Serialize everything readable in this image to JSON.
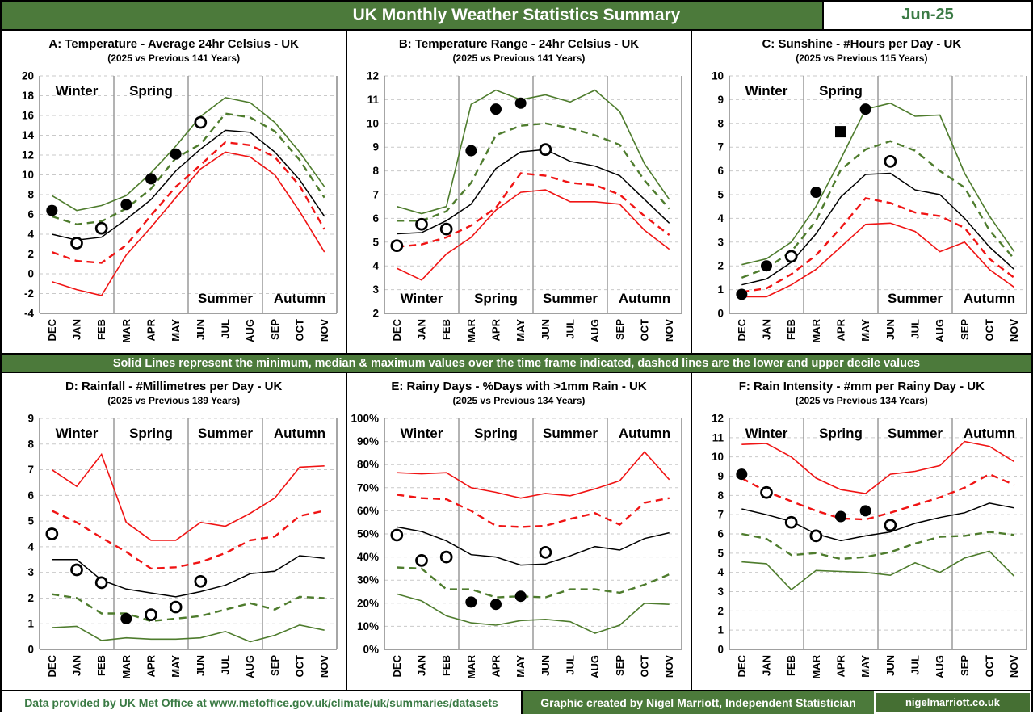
{
  "header": {
    "title": "UK Monthly Weather Statistics Summary",
    "date_label": "Jun-25"
  },
  "note_banner": "Solid Lines represent the minimum, median & maximum values over the time frame indicated, dashed lines are the lower and upper decile values",
  "footer": {
    "source": "Data provided by UK Met Office at www.metoffice.gov.uk/climate/uk/summaries/datasets",
    "credit": "Graphic created by Nigel Marriott, Independent Statistician",
    "website": "nigelmarriott.co.uk"
  },
  "colors": {
    "green": "#4e7c2d",
    "red": "#f01414",
    "black": "#000000",
    "grid": "#c9c9c9",
    "plot_border": "#808080",
    "divider": "#9a9a9a",
    "banner_green": "#4c7a3b"
  },
  "months": [
    "DEC",
    "JAN",
    "FEB",
    "MAR",
    "APR",
    "MAY",
    "JUN",
    "JUL",
    "AUG",
    "SEP",
    "OCT",
    "NOV"
  ],
  "chart_data": [
    {
      "id": "A",
      "type": "line",
      "title": "A: Temperature - Average 24hr Celsius - UK",
      "subtitle": "(2025 vs Previous 141 Years)",
      "ylim": [
        -4,
        20
      ],
      "ytick_step": 2,
      "y_format": "",
      "seasons": [
        {
          "label": "Winter",
          "pos": "top"
        },
        {
          "label": "Spring",
          "pos": "top"
        },
        {
          "label": "Summer",
          "pos": "bottom"
        },
        {
          "label": "Autumn",
          "pos": "bottom"
        }
      ],
      "series": [
        {
          "name": "maximum",
          "style": "solid",
          "color": "green",
          "values": [
            7.9,
            6.4,
            6.9,
            7.9,
            10.2,
            12.9,
            15.9,
            17.8,
            17.3,
            15.3,
            12.3,
            8.8
          ]
        },
        {
          "name": "upper decile",
          "style": "dashed",
          "color": "green",
          "values": [
            5.8,
            5.0,
            5.3,
            6.6,
            8.6,
            11.7,
            13.1,
            16.2,
            15.8,
            14.4,
            11.5,
            7.7
          ]
        },
        {
          "name": "median",
          "style": "solid",
          "color": "black",
          "values": [
            4.0,
            3.4,
            3.7,
            5.5,
            7.5,
            10.4,
            12.6,
            14.5,
            14.3,
            12.3,
            9.5,
            5.8
          ]
        },
        {
          "name": "lower decile",
          "style": "dashed",
          "color": "red",
          "values": [
            2.2,
            1.3,
            1.1,
            2.9,
            5.9,
            8.8,
            11.0,
            13.3,
            13.0,
            11.8,
            8.9,
            4.5
          ]
        },
        {
          "name": "minimum",
          "style": "solid",
          "color": "red",
          "values": [
            -0.8,
            -1.6,
            -2.2,
            1.9,
            4.7,
            7.7,
            10.6,
            12.3,
            11.8,
            10.0,
            6.3,
            2.2
          ]
        }
      ],
      "points_2025": [
        {
          "month": "DEC",
          "value": 6.4,
          "marker": "filled-circle"
        },
        {
          "month": "JAN",
          "value": 3.1,
          "marker": "open-circle"
        },
        {
          "month": "FEB",
          "value": 4.6,
          "marker": "open-circle"
        },
        {
          "month": "MAR",
          "value": 7.0,
          "marker": "filled-circle"
        },
        {
          "month": "APR",
          "value": 9.6,
          "marker": "filled-circle"
        },
        {
          "month": "MAY",
          "value": 12.1,
          "marker": "filled-circle"
        },
        {
          "month": "JUN",
          "value": 15.3,
          "marker": "open-circle"
        }
      ]
    },
    {
      "id": "B",
      "type": "line",
      "title": "B: Temperature Range - 24hr Celsius - UK",
      "subtitle": "(2025 vs Previous 141 Years)",
      "ylim": [
        2,
        12
      ],
      "ytick_step": 1,
      "y_format": "",
      "seasons": [
        {
          "label": "Winter",
          "pos": "bottom"
        },
        {
          "label": "Spring",
          "pos": "bottom"
        },
        {
          "label": "Summer",
          "pos": "bottom"
        },
        {
          "label": "Autumn",
          "pos": "bottom"
        }
      ],
      "series": [
        {
          "name": "maximum",
          "style": "solid",
          "color": "green",
          "values": [
            6.5,
            6.2,
            6.5,
            10.8,
            11.4,
            11.0,
            11.2,
            10.9,
            11.4,
            10.5,
            8.3,
            6.8
          ]
        },
        {
          "name": "upper decile",
          "style": "dashed",
          "color": "green",
          "values": [
            5.9,
            5.9,
            6.3,
            7.5,
            9.5,
            9.9,
            10.0,
            9.8,
            9.5,
            9.1,
            7.6,
            6.4
          ]
        },
        {
          "name": "median",
          "style": "solid",
          "color": "black",
          "values": [
            5.35,
            5.4,
            5.9,
            6.6,
            8.1,
            8.8,
            8.9,
            8.4,
            8.2,
            7.8,
            6.8,
            5.8
          ]
        },
        {
          "name": "lower decile",
          "style": "dashed",
          "color": "red",
          "values": [
            4.8,
            4.9,
            5.2,
            5.7,
            6.45,
            7.9,
            7.8,
            7.5,
            7.4,
            7.0,
            6.1,
            5.3
          ]
        },
        {
          "name": "minimum",
          "style": "solid",
          "color": "red",
          "values": [
            3.9,
            3.4,
            4.5,
            5.2,
            6.35,
            7.1,
            7.2,
            6.7,
            6.7,
            6.6,
            5.5,
            4.7
          ]
        }
      ],
      "points_2025": [
        {
          "month": "DEC",
          "value": 4.85,
          "marker": "open-circle"
        },
        {
          "month": "JAN",
          "value": 5.75,
          "marker": "open-circle"
        },
        {
          "month": "FEB",
          "value": 5.55,
          "marker": "open-circle"
        },
        {
          "month": "MAR",
          "value": 8.85,
          "marker": "filled-circle"
        },
        {
          "month": "APR",
          "value": 10.6,
          "marker": "filled-circle"
        },
        {
          "month": "MAY",
          "value": 10.85,
          "marker": "filled-circle"
        },
        {
          "month": "JUN",
          "value": 8.9,
          "marker": "open-circle"
        }
      ]
    },
    {
      "id": "C",
      "type": "line",
      "title": "C: Sunshine - #Hours per Day - UK",
      "subtitle": "(2025 vs Previous 115 Years)",
      "ylim": [
        0,
        10
      ],
      "ytick_step": 1,
      "y_format": "",
      "seasons": [
        {
          "label": "Winter",
          "pos": "top"
        },
        {
          "label": "Spring",
          "pos": "top"
        },
        {
          "label": "Summer",
          "pos": "bottom"
        },
        {
          "label": "Autumn",
          "pos": "bottom"
        }
      ],
      "series": [
        {
          "name": "maximum",
          "style": "solid",
          "color": "green",
          "values": [
            2.05,
            2.3,
            3.0,
            4.5,
            6.5,
            8.6,
            8.85,
            8.3,
            8.35,
            5.9,
            4.1,
            2.6
          ]
        },
        {
          "name": "upper decile",
          "style": "dashed",
          "color": "green",
          "values": [
            1.5,
            1.9,
            2.6,
            3.9,
            6.05,
            6.9,
            7.25,
            6.85,
            6.0,
            5.3,
            3.5,
            2.3
          ]
        },
        {
          "name": "median",
          "style": "solid",
          "color": "black",
          "values": [
            1.2,
            1.45,
            2.15,
            3.35,
            4.9,
            5.85,
            5.9,
            5.2,
            5.0,
            4.0,
            2.8,
            1.85
          ]
        },
        {
          "name": "lower decile",
          "style": "dashed",
          "color": "red",
          "values": [
            0.9,
            1.05,
            1.65,
            2.45,
            3.6,
            4.85,
            4.65,
            4.25,
            4.1,
            3.6,
            2.3,
            1.5
          ]
        },
        {
          "name": "minimum",
          "style": "solid",
          "color": "red",
          "values": [
            0.7,
            0.7,
            1.2,
            1.85,
            2.8,
            3.75,
            3.8,
            3.45,
            2.6,
            3.0,
            1.85,
            1.1
          ]
        }
      ],
      "points_2025": [
        {
          "month": "DEC",
          "value": 0.8,
          "marker": "filled-circle"
        },
        {
          "month": "JAN",
          "value": 2.0,
          "marker": "filled-circle"
        },
        {
          "month": "FEB",
          "value": 2.4,
          "marker": "open-circle"
        },
        {
          "month": "MAR",
          "value": 5.1,
          "marker": "filled-circle"
        },
        {
          "month": "APR",
          "value": 7.65,
          "marker": "filled-square"
        },
        {
          "month": "MAY",
          "value": 8.6,
          "marker": "filled-circle"
        },
        {
          "month": "JUN",
          "value": 6.4,
          "marker": "open-circle"
        }
      ]
    },
    {
      "id": "D",
      "type": "line",
      "title": "D: Rainfall - #Millimetres per Day - UK",
      "subtitle": "(2025 vs Previous 189 Years)",
      "ylim": [
        0,
        9
      ],
      "ytick_step": 1,
      "y_format": "",
      "seasons": [
        {
          "label": "Winter",
          "pos": "top"
        },
        {
          "label": "Spring",
          "pos": "top"
        },
        {
          "label": "Summer",
          "pos": "top"
        },
        {
          "label": "Autumn",
          "pos": "top"
        }
      ],
      "series": [
        {
          "name": "maximum",
          "style": "solid",
          "color": "red",
          "values": [
            7.0,
            6.35,
            7.6,
            4.95,
            4.25,
            4.25,
            4.95,
            4.8,
            5.3,
            5.9,
            7.1,
            7.15
          ]
        },
        {
          "name": "upper decile",
          "style": "dashed",
          "color": "red",
          "values": [
            5.4,
            4.95,
            4.35,
            3.8,
            3.15,
            3.2,
            3.4,
            3.75,
            4.25,
            4.4,
            5.2,
            5.4
          ]
        },
        {
          "name": "median",
          "style": "solid",
          "color": "black",
          "values": [
            3.5,
            3.5,
            2.7,
            2.35,
            2.2,
            2.05,
            2.25,
            2.5,
            2.95,
            3.05,
            3.65,
            3.55
          ]
        },
        {
          "name": "lower decile",
          "style": "dashed",
          "color": "green",
          "values": [
            2.15,
            2.0,
            1.4,
            1.4,
            1.1,
            1.2,
            1.3,
            1.55,
            1.8,
            1.55,
            2.05,
            2.0
          ]
        },
        {
          "name": "minimum",
          "style": "solid",
          "color": "green",
          "values": [
            0.85,
            0.9,
            0.35,
            0.45,
            0.4,
            0.4,
            0.45,
            0.7,
            0.3,
            0.55,
            0.95,
            0.75
          ]
        }
      ],
      "points_2025": [
        {
          "month": "DEC",
          "value": 4.5,
          "marker": "open-circle"
        },
        {
          "month": "JAN",
          "value": 3.1,
          "marker": "open-circle"
        },
        {
          "month": "FEB",
          "value": 2.6,
          "marker": "open-circle"
        },
        {
          "month": "MAR",
          "value": 1.2,
          "marker": "filled-circle"
        },
        {
          "month": "APR",
          "value": 1.35,
          "marker": "open-circle"
        },
        {
          "month": "MAY",
          "value": 1.65,
          "marker": "open-circle"
        },
        {
          "month": "JUN",
          "value": 2.65,
          "marker": "open-circle"
        }
      ]
    },
    {
      "id": "E",
      "type": "line",
      "title": "E: Rainy Days - %Days with >1mm Rain - UK",
      "subtitle": "(2025 vs Previous 134 Years)",
      "ylim": [
        0,
        100
      ],
      "ytick_step": 10,
      "y_format": "%",
      "seasons": [
        {
          "label": "Winter",
          "pos": "top"
        },
        {
          "label": "Spring",
          "pos": "top"
        },
        {
          "label": "Summer",
          "pos": "top"
        },
        {
          "label": "Autumn",
          "pos": "top"
        }
      ],
      "series": [
        {
          "name": "maximum",
          "style": "solid",
          "color": "red",
          "values": [
            76.5,
            76,
            76.5,
            70,
            68,
            65.5,
            67.5,
            66.5,
            69.5,
            73,
            85.5,
            73.5
          ]
        },
        {
          "name": "upper decile",
          "style": "dashed",
          "color": "red",
          "values": [
            67,
            65.5,
            65,
            60,
            53.5,
            53,
            53.5,
            56.5,
            59,
            54,
            63.5,
            65.5
          ]
        },
        {
          "name": "median",
          "style": "solid",
          "color": "black",
          "values": [
            53,
            51,
            47,
            41,
            40,
            36.5,
            37,
            40.5,
            44.5,
            43,
            48,
            50.5
          ]
        },
        {
          "name": "lower decile",
          "style": "dashed",
          "color": "green",
          "values": [
            35.5,
            35,
            26,
            26,
            22.5,
            23,
            22.5,
            26,
            26,
            24.5,
            28,
            32.5
          ]
        },
        {
          "name": "minimum",
          "style": "solid",
          "color": "green",
          "values": [
            24,
            21,
            14.5,
            11.5,
            10.5,
            12.5,
            13,
            12,
            7,
            10.5,
            20,
            19.5
          ]
        }
      ],
      "points_2025": [
        {
          "month": "DEC",
          "value": 49.5,
          "marker": "open-circle"
        },
        {
          "month": "JAN",
          "value": 38.5,
          "marker": "open-circle"
        },
        {
          "month": "FEB",
          "value": 40,
          "marker": "open-circle"
        },
        {
          "month": "MAR",
          "value": 20.5,
          "marker": "filled-circle"
        },
        {
          "month": "APR",
          "value": 19.5,
          "marker": "filled-circle"
        },
        {
          "month": "MAY",
          "value": 23,
          "marker": "filled-circle"
        },
        {
          "month": "JUN",
          "value": 42,
          "marker": "open-circle"
        }
      ]
    },
    {
      "id": "F",
      "type": "line",
      "title": "F: Rain Intensity - #mm per Rainy Day - UK",
      "subtitle": "(2025 vs Previous 134 Years)",
      "ylim": [
        0,
        12
      ],
      "ytick_step": 1,
      "y_format": "",
      "seasons": [
        {
          "label": "Winter",
          "pos": "top"
        },
        {
          "label": "Spring",
          "pos": "top"
        },
        {
          "label": "Summer",
          "pos": "top"
        },
        {
          "label": "Autumn",
          "pos": "top"
        }
      ],
      "series": [
        {
          "name": "maximum",
          "style": "solid",
          "color": "red",
          "values": [
            10.65,
            10.7,
            10.0,
            8.9,
            8.3,
            8.1,
            9.1,
            9.25,
            9.55,
            10.8,
            10.55,
            9.75
          ]
        },
        {
          "name": "upper decile",
          "style": "dashed",
          "color": "red",
          "values": [
            8.9,
            8.2,
            7.7,
            7.2,
            6.8,
            6.75,
            7.1,
            7.5,
            7.9,
            8.4,
            9.1,
            8.55
          ]
        },
        {
          "name": "median",
          "style": "solid",
          "color": "black",
          "values": [
            7.3,
            7.0,
            6.65,
            6.0,
            5.65,
            5.9,
            6.1,
            6.55,
            6.85,
            7.1,
            7.6,
            7.35
          ]
        },
        {
          "name": "lower decile",
          "style": "dashed",
          "color": "green",
          "values": [
            6.0,
            5.75,
            4.9,
            5.0,
            4.7,
            4.8,
            5.05,
            5.5,
            5.85,
            5.9,
            6.1,
            5.95
          ]
        },
        {
          "name": "minimum",
          "style": "solid",
          "color": "green",
          "values": [
            4.55,
            4.45,
            3.1,
            4.1,
            4.05,
            4.0,
            3.85,
            4.5,
            4.0,
            4.75,
            5.1,
            3.8
          ]
        }
      ],
      "points_2025": [
        {
          "month": "DEC",
          "value": 9.1,
          "marker": "filled-circle"
        },
        {
          "month": "JAN",
          "value": 8.15,
          "marker": "open-circle"
        },
        {
          "month": "FEB",
          "value": 6.6,
          "marker": "open-circle"
        },
        {
          "month": "MAR",
          "value": 5.9,
          "marker": "open-circle"
        },
        {
          "month": "APR",
          "value": 6.9,
          "marker": "filled-circle"
        },
        {
          "month": "MAY",
          "value": 7.2,
          "marker": "filled-circle"
        },
        {
          "month": "JUN",
          "value": 6.45,
          "marker": "open-circle"
        }
      ]
    }
  ]
}
